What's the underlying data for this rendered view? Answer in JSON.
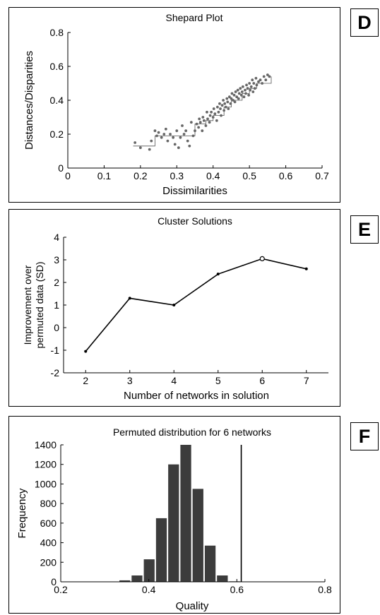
{
  "panels": {
    "d": {
      "letter": "D"
    },
    "e": {
      "letter": "E"
    },
    "f": {
      "letter": "F"
    }
  },
  "chart_data": [
    {
      "type": "scatter",
      "title": "Shepard Plot",
      "xlabel": "Dissimilarities",
      "ylabel": "Distances/Disparities",
      "xlim": [
        0,
        0.7
      ],
      "ylim": [
        0,
        0.8
      ],
      "xticks": [
        0,
        0.1,
        0.2,
        0.3,
        0.4,
        0.5,
        0.6,
        0.7
      ],
      "xtick_labels": [
        "0",
        "0.1",
        "0.2",
        "0.3",
        "0.4",
        "0.5",
        "0.6",
        "0.7"
      ],
      "yticks": [
        0,
        0.2,
        0.4,
        0.6,
        0.8
      ],
      "ytick_labels": [
        "0",
        "0.2",
        "0.4",
        "0.6",
        "0.8"
      ],
      "grid": false,
      "points": {
        "x": [
          0.185,
          0.2,
          0.225,
          0.23,
          0.24,
          0.245,
          0.25,
          0.258,
          0.265,
          0.27,
          0.275,
          0.282,
          0.29,
          0.295,
          0.3,
          0.305,
          0.31,
          0.315,
          0.32,
          0.325,
          0.33,
          0.335,
          0.34,
          0.345,
          0.35,
          0.355,
          0.36,
          0.362,
          0.365,
          0.37,
          0.372,
          0.375,
          0.38,
          0.383,
          0.385,
          0.39,
          0.392,
          0.395,
          0.4,
          0.402,
          0.405,
          0.41,
          0.412,
          0.415,
          0.418,
          0.42,
          0.422,
          0.425,
          0.428,
          0.43,
          0.432,
          0.435,
          0.438,
          0.44,
          0.442,
          0.445,
          0.448,
          0.45,
          0.452,
          0.455,
          0.458,
          0.46,
          0.462,
          0.465,
          0.468,
          0.47,
          0.472,
          0.475,
          0.478,
          0.48,
          0.482,
          0.485,
          0.488,
          0.49,
          0.492,
          0.495,
          0.498,
          0.5,
          0.502,
          0.505,
          0.508,
          0.51,
          0.512,
          0.515,
          0.518,
          0.52,
          0.525,
          0.53,
          0.535,
          0.54,
          0.545,
          0.55,
          0.555
        ],
        "y": [
          0.15,
          0.12,
          0.11,
          0.16,
          0.22,
          0.19,
          0.21,
          0.18,
          0.2,
          0.23,
          0.16,
          0.2,
          0.18,
          0.14,
          0.22,
          0.12,
          0.18,
          0.25,
          0.2,
          0.22,
          0.16,
          0.13,
          0.27,
          0.19,
          0.22,
          0.26,
          0.24,
          0.29,
          0.27,
          0.22,
          0.3,
          0.28,
          0.25,
          0.33,
          0.29,
          0.27,
          0.31,
          0.33,
          0.3,
          0.35,
          0.32,
          0.28,
          0.36,
          0.33,
          0.38,
          0.35,
          0.31,
          0.37,
          0.4,
          0.34,
          0.38,
          0.36,
          0.41,
          0.39,
          0.35,
          0.42,
          0.38,
          0.41,
          0.44,
          0.4,
          0.43,
          0.39,
          0.45,
          0.42,
          0.46,
          0.41,
          0.44,
          0.47,
          0.43,
          0.45,
          0.48,
          0.42,
          0.46,
          0.44,
          0.49,
          0.47,
          0.43,
          0.5,
          0.46,
          0.48,
          0.52,
          0.45,
          0.5,
          0.47,
          0.53,
          0.49,
          0.51,
          0.52,
          0.5,
          0.54,
          0.52,
          0.55,
          0.54
        ]
      },
      "fit_line": {
        "x": [
          0.18,
          0.23,
          0.24,
          0.34,
          0.35,
          0.38,
          0.4,
          0.43,
          0.45,
          0.48,
          0.5,
          0.52,
          0.56
        ],
        "y": [
          0.13,
          0.13,
          0.19,
          0.19,
          0.26,
          0.28,
          0.31,
          0.36,
          0.4,
          0.44,
          0.47,
          0.5,
          0.54
        ]
      }
    },
    {
      "type": "line",
      "title": "Cluster Solutions",
      "xlabel": "Number of networks in solution",
      "ylabel": "Improvement over permuted data (SD)",
      "ylabel_lines": [
        "Improvement over",
        "permuted data (SD)"
      ],
      "xlim": [
        1.5,
        7.5
      ],
      "ylim": [
        -2,
        4
      ],
      "xticks": [
        2,
        3,
        4,
        5,
        6,
        7
      ],
      "xtick_labels": [
        "2",
        "3",
        "4",
        "5",
        "6",
        "7"
      ],
      "yticks": [
        -2,
        -1,
        0,
        1,
        2,
        3,
        4
      ],
      "ytick_labels": [
        "-2",
        "-1",
        "0",
        "1",
        "2",
        "3",
        "4"
      ],
      "grid": false,
      "x": [
        2,
        3,
        4,
        5,
        6,
        7
      ],
      "values": [
        -1.05,
        1.3,
        1.0,
        2.37,
        3.05,
        2.6
      ],
      "highlight_x": 6
    },
    {
      "type": "bar",
      "title": "Permuted distribution for 6 networks",
      "xlabel": "Quality",
      "ylabel": "Frequency",
      "xlim": [
        0.2,
        0.8
      ],
      "ylim": [
        0,
        1400
      ],
      "xticks": [
        0.2,
        0.4,
        0.6,
        0.8
      ],
      "xtick_labels": [
        "0.2",
        "0.4",
        "0.6",
        "0.8"
      ],
      "yticks": [
        0,
        200,
        400,
        600,
        800,
        1000,
        1200,
        1400
      ],
      "ytick_labels": [
        "0",
        "200",
        "400",
        "600",
        "800",
        "1000",
        "1200",
        "1400"
      ],
      "grid": false,
      "bin_width": 0.0277,
      "bin_centers": [
        0.3455,
        0.3732,
        0.4009,
        0.4286,
        0.4563,
        0.484,
        0.5117,
        0.5394,
        0.5671,
        0.5948
      ],
      "values": [
        15,
        65,
        230,
        650,
        1200,
        1400,
        950,
        370,
        65,
        5
      ],
      "observed_value": 0.61
    }
  ]
}
